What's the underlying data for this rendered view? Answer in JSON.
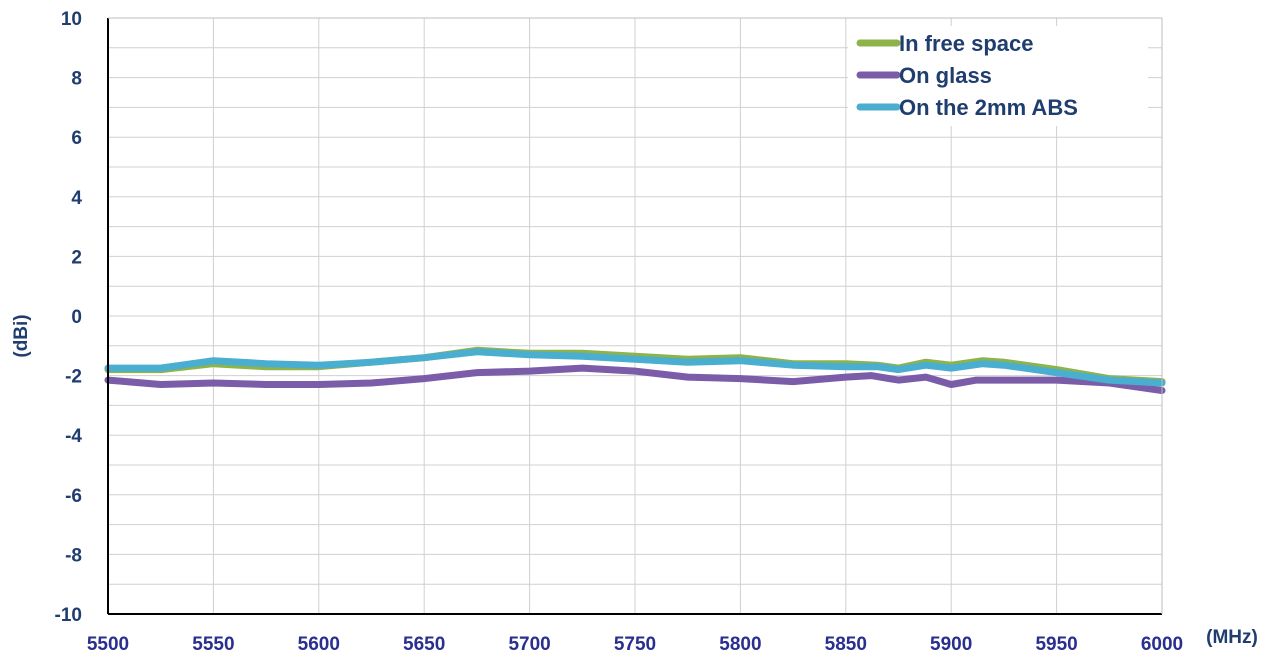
{
  "colors": {
    "text": "#1f3d6e",
    "xtick": "#2a2e8e",
    "grid": "#d0d0d0",
    "axis": "#000000"
  },
  "chart_data": {
    "type": "line",
    "xlabel": "(MHz)",
    "ylabel": "(dBi)",
    "xlim": [
      5500,
      6000
    ],
    "ylim": [
      -10,
      10
    ],
    "xticks": [
      5500,
      5550,
      5600,
      5650,
      5700,
      5750,
      5800,
      5850,
      5900,
      5950,
      6000
    ],
    "yticks": [
      10,
      8,
      6,
      4,
      2,
      0,
      -2,
      -4,
      -6,
      -8,
      -10
    ],
    "grid": true,
    "legend_position": "top-right",
    "series": [
      {
        "name": "In free space",
        "color": "#8db34a",
        "x": [
          5500,
          5525,
          5550,
          5575,
          5600,
          5625,
          5650,
          5675,
          5700,
          5725,
          5750,
          5775,
          5800,
          5825,
          5850,
          5865,
          5875,
          5888,
          5900,
          5915,
          5925,
          5950,
          5975,
          6000
        ],
        "y": [
          -1.8,
          -1.8,
          -1.6,
          -1.7,
          -1.7,
          -1.55,
          -1.4,
          -1.15,
          -1.25,
          -1.25,
          -1.35,
          -1.45,
          -1.4,
          -1.6,
          -1.6,
          -1.65,
          -1.75,
          -1.55,
          -1.65,
          -1.5,
          -1.55,
          -1.8,
          -2.1,
          -2.2
        ]
      },
      {
        "name": "On glass",
        "color": "#7a5ca8",
        "x": [
          5500,
          5525,
          5550,
          5575,
          5600,
          5625,
          5650,
          5675,
          5700,
          5725,
          5750,
          5775,
          5800,
          5825,
          5850,
          5862,
          5875,
          5888,
          5900,
          5912,
          5925,
          5950,
          5975,
          6000
        ],
        "y": [
          -2.15,
          -2.3,
          -2.25,
          -2.3,
          -2.3,
          -2.25,
          -2.1,
          -1.9,
          -1.85,
          -1.75,
          -1.85,
          -2.05,
          -2.1,
          -2.2,
          -2.05,
          -2.0,
          -2.15,
          -2.05,
          -2.3,
          -2.15,
          -2.15,
          -2.15,
          -2.25,
          -2.5
        ]
      },
      {
        "name": "On the 2mm ABS",
        "color": "#4aaed0",
        "x": [
          5500,
          5525,
          5550,
          5575,
          5600,
          5625,
          5650,
          5675,
          5700,
          5725,
          5750,
          5775,
          5800,
          5825,
          5850,
          5865,
          5875,
          5888,
          5900,
          5915,
          5925,
          5950,
          5975,
          6000
        ],
        "y": [
          -1.75,
          -1.75,
          -1.5,
          -1.6,
          -1.65,
          -1.55,
          -1.4,
          -1.2,
          -1.3,
          -1.35,
          -1.45,
          -1.55,
          -1.5,
          -1.65,
          -1.7,
          -1.7,
          -1.8,
          -1.65,
          -1.75,
          -1.6,
          -1.65,
          -1.9,
          -2.15,
          -2.25
        ]
      }
    ]
  }
}
